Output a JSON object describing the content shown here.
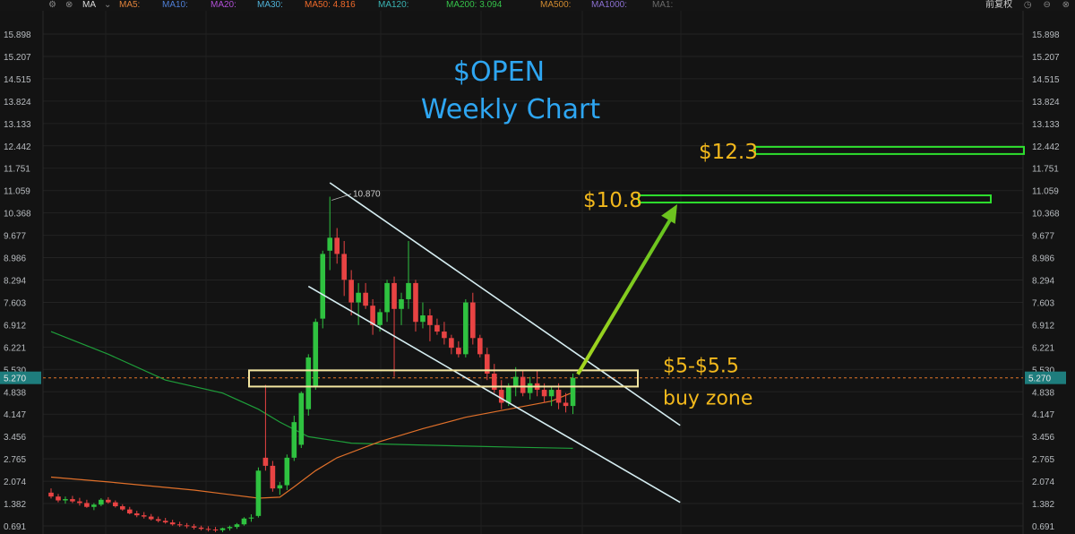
{
  "toolbar": {
    "indicator": "MA",
    "ma_items": [
      {
        "label": "MA5:",
        "value": "",
        "color": "#e0823a",
        "x": 133
      },
      {
        "label": "MA10:",
        "value": "",
        "color": "#4f7fd6",
        "x": 181
      },
      {
        "label": "MA20:",
        "value": "",
        "color": "#b04fd6",
        "x": 235
      },
      {
        "label": "MA30:",
        "value": "",
        "color": "#4fb0d6",
        "x": 287
      },
      {
        "label": "MA50:",
        "value": "4.816",
        "color": "#f06a2a",
        "x": 340
      },
      {
        "label": "MA120:",
        "value": "",
        "color": "#3ab5b5",
        "x": 422
      },
      {
        "label": "MA200:",
        "value": "3.094",
        "color": "#35c24a",
        "x": 498
      },
      {
        "label": "MA500:",
        "value": "",
        "color": "#d08a30",
        "x": 603
      },
      {
        "label": "MA1000:",
        "value": "",
        "color": "#8a6fd0",
        "x": 660
      },
      {
        "label": "MA1:",
        "value": "",
        "color": "#6a6a6a",
        "x": 728
      }
    ],
    "adjust_label": "前复权",
    "icons": [
      "settings-icon",
      "close-icon",
      "dropdown-icon",
      "clock-icon",
      "minimize-icon",
      "close-window-icon"
    ]
  },
  "chart_data": {
    "type": "candlestick",
    "title": "$OPEN",
    "subtitle": "Weekly Chart",
    "y_axis": {
      "ticks": [
        15.898,
        15.207,
        14.515,
        13.824,
        13.133,
        12.442,
        11.751,
        11.059,
        10.368,
        9.677,
        8.986,
        8.294,
        7.603,
        6.912,
        6.221,
        5.53,
        4.838,
        4.147,
        3.456,
        2.765,
        2.074,
        1.382,
        0.691
      ],
      "range": [
        0.4,
        16.6
      ],
      "current_price": "5.270"
    },
    "high_label": "10.870",
    "candles": [
      [
        1.72,
        1.85,
        1.54,
        1.6
      ],
      [
        1.6,
        1.68,
        1.42,
        1.48
      ],
      [
        1.48,
        1.6,
        1.38,
        1.52
      ],
      [
        1.52,
        1.62,
        1.4,
        1.45
      ],
      [
        1.45,
        1.56,
        1.32,
        1.4
      ],
      [
        1.4,
        1.5,
        1.25,
        1.28
      ],
      [
        1.28,
        1.4,
        1.18,
        1.35
      ],
      [
        1.35,
        1.55,
        1.3,
        1.5
      ],
      [
        1.5,
        1.58,
        1.38,
        1.42
      ],
      [
        1.42,
        1.48,
        1.26,
        1.3
      ],
      [
        1.3,
        1.36,
        1.16,
        1.2
      ],
      [
        1.2,
        1.28,
        1.05,
        1.08
      ],
      [
        1.08,
        1.16,
        0.96,
        1.02
      ],
      [
        1.02,
        1.12,
        0.92,
        0.98
      ],
      [
        0.98,
        1.06,
        0.86,
        0.9
      ],
      [
        0.9,
        0.98,
        0.8,
        0.85
      ],
      [
        0.85,
        0.94,
        0.76,
        0.8
      ],
      [
        0.8,
        0.88,
        0.7,
        0.74
      ],
      [
        0.74,
        0.82,
        0.66,
        0.71
      ],
      [
        0.71,
        0.78,
        0.62,
        0.68
      ],
      [
        0.68,
        0.75,
        0.58,
        0.64
      ],
      [
        0.64,
        0.7,
        0.55,
        0.6
      ],
      [
        0.6,
        0.68,
        0.52,
        0.58
      ],
      [
        0.58,
        0.66,
        0.5,
        0.56
      ],
      [
        0.56,
        0.64,
        0.5,
        0.62
      ],
      [
        0.62,
        0.7,
        0.55,
        0.66
      ],
      [
        0.66,
        0.78,
        0.6,
        0.74
      ],
      [
        0.74,
        0.96,
        0.7,
        0.92
      ],
      [
        0.92,
        1.05,
        0.82,
        0.95
      ],
      [
        1.0,
        2.5,
        0.95,
        2.4
      ],
      [
        2.8,
        5.05,
        2.4,
        2.55
      ],
      [
        2.55,
        2.7,
        1.75,
        1.85
      ],
      [
        1.85,
        2.05,
        1.65,
        1.95
      ],
      [
        1.95,
        2.9,
        1.8,
        2.8
      ],
      [
        2.8,
        4.1,
        2.7,
        3.9
      ],
      [
        3.2,
        4.85,
        3.1,
        4.8
      ],
      [
        4.3,
        6.0,
        4.1,
        5.9
      ],
      [
        5.0,
        7.1,
        4.9,
        7.0
      ],
      [
        7.1,
        9.2,
        6.8,
        9.1
      ],
      [
        9.2,
        10.87,
        8.6,
        9.6
      ],
      [
        9.6,
        9.9,
        8.8,
        9.1
      ],
      [
        9.1,
        9.5,
        7.8,
        8.3
      ],
      [
        8.3,
        8.6,
        7.2,
        7.6
      ],
      [
        7.6,
        8.2,
        6.9,
        7.9
      ],
      [
        7.9,
        8.2,
        7.4,
        7.5
      ],
      [
        7.5,
        7.7,
        6.6,
        6.9
      ],
      [
        6.9,
        7.4,
        6.7,
        7.3
      ],
      [
        7.3,
        8.3,
        7.0,
        8.2
      ],
      [
        8.2,
        8.4,
        5.3,
        7.4
      ],
      [
        7.4,
        7.9,
        6.9,
        7.7
      ],
      [
        7.7,
        9.5,
        7.4,
        8.2
      ],
      [
        8.2,
        8.3,
        6.7,
        7.0
      ],
      [
        7.0,
        7.6,
        6.8,
        7.2
      ],
      [
        7.2,
        7.4,
        6.4,
        6.9
      ],
      [
        6.9,
        7.1,
        6.6,
        6.7
      ],
      [
        6.7,
        7.0,
        6.3,
        6.5
      ],
      [
        6.5,
        6.6,
        6.0,
        6.2
      ],
      [
        6.2,
        6.4,
        5.9,
        6.0
      ],
      [
        6.0,
        7.7,
        5.9,
        7.6
      ],
      [
        7.6,
        7.9,
        6.3,
        6.5
      ],
      [
        6.5,
        6.6,
        5.9,
        6.0
      ],
      [
        6.0,
        6.2,
        5.2,
        5.4
      ],
      [
        5.4,
        5.7,
        4.8,
        4.9
      ],
      [
        4.9,
        5.2,
        4.3,
        4.5
      ],
      [
        4.5,
        5.1,
        4.4,
        5.0
      ],
      [
        5.0,
        5.6,
        4.7,
        5.3
      ],
      [
        5.3,
        5.5,
        4.7,
        4.8
      ],
      [
        4.8,
        5.3,
        4.6,
        5.1
      ],
      [
        5.1,
        5.5,
        4.7,
        4.9
      ],
      [
        4.9,
        5.1,
        4.5,
        4.7
      ],
      [
        4.7,
        5.0,
        4.4,
        4.9
      ],
      [
        4.9,
        5.1,
        4.3,
        4.5
      ],
      [
        4.5,
        4.8,
        4.2,
        4.4
      ],
      [
        4.4,
        5.4,
        4.15,
        5.27
      ]
    ],
    "ma50": [
      [
        0,
        2.2
      ],
      [
        8,
        2.05
      ],
      [
        20,
        1.8
      ],
      [
        29,
        1.55
      ],
      [
        32,
        1.58
      ],
      [
        34,
        1.9
      ],
      [
        37,
        2.4
      ],
      [
        40,
        2.8
      ],
      [
        46,
        3.3
      ],
      [
        52,
        3.7
      ],
      [
        58,
        4.05
      ],
      [
        64,
        4.3
      ],
      [
        70,
        4.55
      ],
      [
        73,
        4.82
      ]
    ],
    "ma200": [
      [
        0,
        6.7
      ],
      [
        8,
        6.0
      ],
      [
        16,
        5.2
      ],
      [
        24,
        4.8
      ],
      [
        29,
        4.3
      ],
      [
        32,
        3.9
      ],
      [
        36,
        3.45
      ],
      [
        42,
        3.25
      ],
      [
        50,
        3.2
      ],
      [
        58,
        3.16
      ],
      [
        66,
        3.12
      ],
      [
        73,
        3.09
      ]
    ],
    "annotations": {
      "buy_zone_low": 5.0,
      "buy_zone_high": 5.5,
      "buy_zone_label": "$5-$5.5",
      "buy_zone_text": "buy zone",
      "target1_label": "$10.8",
      "target1_value": 10.8,
      "target2_label": "$12.3",
      "target2_value": 12.3,
      "channel_upper": [
        [
          39,
          11.3
        ],
        [
          88,
          3.8
        ]
      ],
      "channel_lower": [
        [
          36,
          8.1
        ],
        [
          88,
          1.42
        ]
      ],
      "arrow_from": [
        75,
        5.27
      ],
      "arrow_to": [
        85,
        10.8
      ]
    }
  }
}
